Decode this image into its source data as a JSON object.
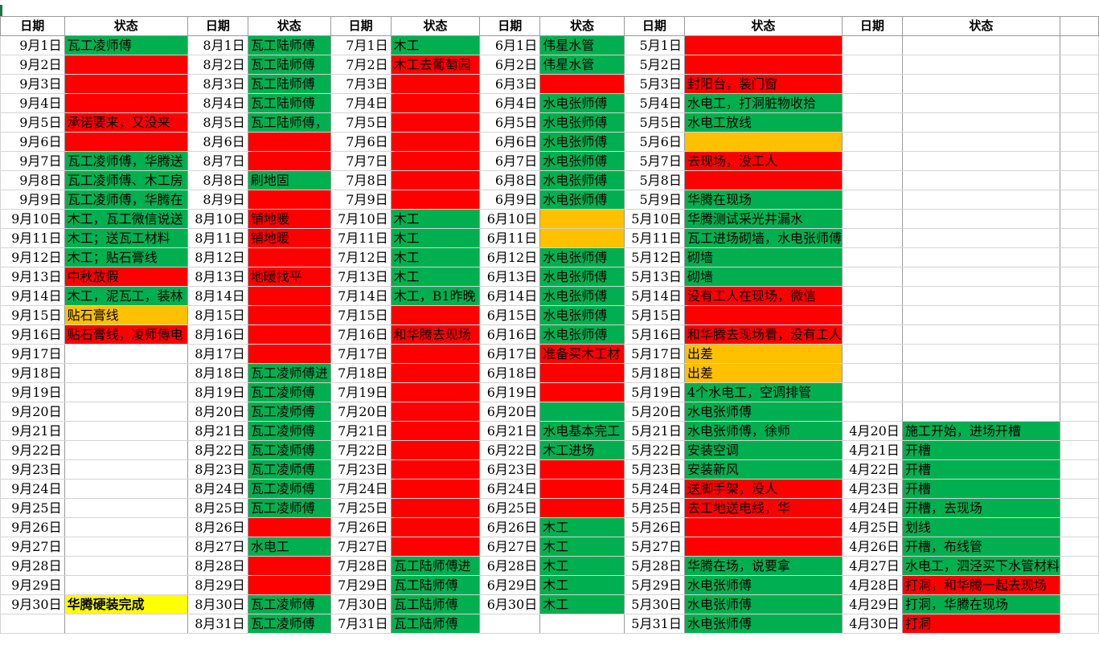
{
  "headers": [
    "日期",
    "状态",
    "日期",
    "状态",
    "日期",
    "状态",
    "日期",
    "状态",
    "日期",
    "状态",
    "日期",
    "状态"
  ],
  "colors": {
    "g": "#00b050",
    "r": "#ff0000",
    "o": "#ffc000",
    "y": "#ffff00"
  },
  "rows": [
    [
      [
        "9月1日",
        ""
      ],
      [
        "瓦工凌师傅",
        "g"
      ],
      [
        "8月1日",
        ""
      ],
      [
        "瓦工陆师傅",
        "g"
      ],
      [
        "7月1日",
        ""
      ],
      [
        "木工",
        "g"
      ],
      [
        "6月1日",
        ""
      ],
      [
        "伟星水管",
        "g"
      ],
      [
        "5月1日",
        ""
      ],
      [
        "",
        "r"
      ],
      [
        "",
        ""
      ],
      [
        "",
        ""
      ]
    ],
    [
      [
        "9月2日",
        ""
      ],
      [
        "",
        "r"
      ],
      [
        "8月2日",
        ""
      ],
      [
        "瓦工陆师傅",
        "g"
      ],
      [
        "7月2日",
        ""
      ],
      [
        "木工去葡萄园",
        "r"
      ],
      [
        "6月2日",
        ""
      ],
      [
        "伟星水管",
        "g"
      ],
      [
        "5月2日",
        ""
      ],
      [
        "",
        "r"
      ],
      [
        "",
        ""
      ],
      [
        "",
        ""
      ]
    ],
    [
      [
        "9月3日",
        ""
      ],
      [
        "",
        "r"
      ],
      [
        "8月3日",
        ""
      ],
      [
        "瓦工陆师傅",
        "g"
      ],
      [
        "7月3日",
        ""
      ],
      [
        "",
        "r"
      ],
      [
        "6月3日",
        ""
      ],
      [
        "",
        "r"
      ],
      [
        "5月3日",
        ""
      ],
      [
        "封阳台，装门窗",
        "r"
      ],
      [
        "",
        ""
      ],
      [
        "",
        ""
      ]
    ],
    [
      [
        "9月4日",
        ""
      ],
      [
        "",
        "r"
      ],
      [
        "8月4日",
        ""
      ],
      [
        "瓦工陆师傅",
        "g"
      ],
      [
        "7月4日",
        ""
      ],
      [
        "",
        "r"
      ],
      [
        "6月4日",
        ""
      ],
      [
        "水电张师傅",
        "g"
      ],
      [
        "5月4日",
        ""
      ],
      [
        "水电工，打洞脏物收拾",
        "g"
      ],
      [
        "",
        ""
      ],
      [
        "",
        ""
      ]
    ],
    [
      [
        "9月5日",
        ""
      ],
      [
        "承诺要来，又没来",
        "r"
      ],
      [
        "8月5日",
        ""
      ],
      [
        "瓦工陆师傅，",
        "g"
      ],
      [
        "7月5日",
        ""
      ],
      [
        "",
        "r"
      ],
      [
        "6月5日",
        ""
      ],
      [
        "水电张师傅",
        "g"
      ],
      [
        "5月5日",
        ""
      ],
      [
        "水电工放线",
        "g"
      ],
      [
        "",
        ""
      ],
      [
        "",
        ""
      ]
    ],
    [
      [
        "9月6日",
        ""
      ],
      [
        "",
        "r"
      ],
      [
        "8月6日",
        ""
      ],
      [
        "",
        "r"
      ],
      [
        "7月6日",
        ""
      ],
      [
        "",
        "r"
      ],
      [
        "6月6日",
        ""
      ],
      [
        "水电张师傅",
        "g"
      ],
      [
        "5月6日",
        ""
      ],
      [
        "",
        "o"
      ],
      [
        "",
        ""
      ],
      [
        "",
        ""
      ]
    ],
    [
      [
        "9月7日",
        ""
      ],
      [
        "瓦工凌师傅，华腾送",
        "g"
      ],
      [
        "8月7日",
        ""
      ],
      [
        "",
        "r"
      ],
      [
        "7月7日",
        ""
      ],
      [
        "",
        "r"
      ],
      [
        "6月7日",
        ""
      ],
      [
        "水电张师傅",
        "g"
      ],
      [
        "5月7日",
        ""
      ],
      [
        "去现场，没工人",
        "r"
      ],
      [
        "",
        ""
      ],
      [
        "",
        ""
      ]
    ],
    [
      [
        "9月8日",
        ""
      ],
      [
        "瓦工凌师傅、木工房",
        "g"
      ],
      [
        "8月8日",
        ""
      ],
      [
        "刷地固",
        "g"
      ],
      [
        "7月8日",
        ""
      ],
      [
        "",
        "r"
      ],
      [
        "6月8日",
        ""
      ],
      [
        "水电张师傅",
        "g"
      ],
      [
        "5月8日",
        ""
      ],
      [
        "",
        "r"
      ],
      [
        "",
        ""
      ],
      [
        "",
        ""
      ]
    ],
    [
      [
        "9月9日",
        ""
      ],
      [
        "瓦工凌师傅，华腾在",
        "g"
      ],
      [
        "8月9日",
        ""
      ],
      [
        "",
        "r"
      ],
      [
        "7月9日",
        ""
      ],
      [
        "",
        "r"
      ],
      [
        "6月9日",
        ""
      ],
      [
        "水电张师傅",
        "g"
      ],
      [
        "5月9日",
        ""
      ],
      [
        "华腾在现场",
        "g"
      ],
      [
        "",
        ""
      ],
      [
        "",
        ""
      ]
    ],
    [
      [
        "9月10日",
        ""
      ],
      [
        "木工，瓦工微信说送",
        "g"
      ],
      [
        "8月10日",
        ""
      ],
      [
        "铺地暖",
        "r"
      ],
      [
        "7月10日",
        ""
      ],
      [
        "木工",
        "g"
      ],
      [
        "6月10日",
        ""
      ],
      [
        "",
        "o"
      ],
      [
        "5月10日",
        ""
      ],
      [
        "华腾测试采光井漏水",
        "g"
      ],
      [
        "",
        ""
      ],
      [
        "",
        ""
      ]
    ],
    [
      [
        "9月11日",
        ""
      ],
      [
        "木工；送瓦工材料",
        "g"
      ],
      [
        "8月11日",
        ""
      ],
      [
        "铺地暖",
        "r"
      ],
      [
        "7月11日",
        ""
      ],
      [
        "木工",
        "g"
      ],
      [
        "6月11日",
        ""
      ],
      [
        "",
        "o"
      ],
      [
        "5月11日",
        ""
      ],
      [
        "瓦工进场砌墙，水电张师傅",
        "g"
      ],
      [
        "",
        ""
      ],
      [
        "",
        ""
      ]
    ],
    [
      [
        "9月12日",
        ""
      ],
      [
        "木工；贴石膏线",
        "g"
      ],
      [
        "8月12日",
        ""
      ],
      [
        "",
        "r"
      ],
      [
        "7月12日",
        ""
      ],
      [
        "木工",
        "g"
      ],
      [
        "6月12日",
        ""
      ],
      [
        "水电张师傅",
        "g"
      ],
      [
        "5月12日",
        ""
      ],
      [
        "砌墙",
        "g"
      ],
      [
        "",
        ""
      ],
      [
        "",
        ""
      ]
    ],
    [
      [
        "9月13日",
        ""
      ],
      [
        "中秋放假",
        "r"
      ],
      [
        "8月13日",
        ""
      ],
      [
        "地暖找平",
        "r"
      ],
      [
        "7月13日",
        ""
      ],
      [
        "木工",
        "g"
      ],
      [
        "6月13日",
        ""
      ],
      [
        "水电张师傅",
        "g"
      ],
      [
        "5月13日",
        ""
      ],
      [
        "砌墙",
        "g"
      ],
      [
        "",
        ""
      ],
      [
        "",
        ""
      ]
    ],
    [
      [
        "9月14日",
        ""
      ],
      [
        "木工，泥瓦工，装林",
        "g"
      ],
      [
        "8月14日",
        ""
      ],
      [
        "",
        "r"
      ],
      [
        "7月14日",
        ""
      ],
      [
        "木工，B1昨晚",
        "g"
      ],
      [
        "6月14日",
        ""
      ],
      [
        "水电张师傅",
        "g"
      ],
      [
        "5月14日",
        ""
      ],
      [
        "没有工人在现场，微信",
        "r"
      ],
      [
        "",
        ""
      ],
      [
        "",
        ""
      ]
    ],
    [
      [
        "9月15日",
        ""
      ],
      [
        "贴石膏线",
        "o"
      ],
      [
        "8月15日",
        ""
      ],
      [
        "",
        "r"
      ],
      [
        "7月15日",
        ""
      ],
      [
        "",
        "r"
      ],
      [
        "6月15日",
        ""
      ],
      [
        "水电张师傅",
        "g"
      ],
      [
        "5月15日",
        ""
      ],
      [
        "",
        "r"
      ],
      [
        "",
        ""
      ],
      [
        "",
        ""
      ]
    ],
    [
      [
        "9月16日",
        ""
      ],
      [
        "贴石膏线，凌师傅电",
        "r"
      ],
      [
        "8月16日",
        ""
      ],
      [
        "",
        "r"
      ],
      [
        "7月16日",
        ""
      ],
      [
        "和华腾去现场",
        "r"
      ],
      [
        "6月16日",
        ""
      ],
      [
        "水电张师傅",
        "g"
      ],
      [
        "5月16日",
        ""
      ],
      [
        "和华腾去现场看，没有工人",
        "r"
      ],
      [
        "",
        ""
      ],
      [
        "",
        ""
      ]
    ],
    [
      [
        "9月17日",
        ""
      ],
      [
        "",
        ""
      ],
      [
        "8月17日",
        ""
      ],
      [
        "",
        "r"
      ],
      [
        "7月17日",
        ""
      ],
      [
        "",
        "r"
      ],
      [
        "6月17日",
        ""
      ],
      [
        "准备买木工材",
        "r"
      ],
      [
        "5月17日",
        ""
      ],
      [
        "出差",
        "o"
      ],
      [
        "",
        ""
      ],
      [
        "",
        ""
      ]
    ],
    [
      [
        "9月18日",
        ""
      ],
      [
        "",
        ""
      ],
      [
        "8月18日",
        ""
      ],
      [
        "瓦工凌师傅进",
        "g"
      ],
      [
        "7月18日",
        ""
      ],
      [
        "",
        "r"
      ],
      [
        "6月18日",
        ""
      ],
      [
        "",
        "r"
      ],
      [
        "5月18日",
        ""
      ],
      [
        "出差",
        "o"
      ],
      [
        "",
        ""
      ],
      [
        "",
        ""
      ]
    ],
    [
      [
        "9月19日",
        ""
      ],
      [
        "",
        ""
      ],
      [
        "8月19日",
        ""
      ],
      [
        "瓦工凌师傅",
        "g"
      ],
      [
        "7月19日",
        ""
      ],
      [
        "",
        "r"
      ],
      [
        "6月19日",
        ""
      ],
      [
        "",
        "r"
      ],
      [
        "5月19日",
        ""
      ],
      [
        "4个水电工，空调排管",
        "g"
      ],
      [
        "",
        ""
      ],
      [
        "",
        ""
      ]
    ],
    [
      [
        "9月20日",
        ""
      ],
      [
        "",
        ""
      ],
      [
        "8月20日",
        ""
      ],
      [
        "瓦工凌师傅",
        "g"
      ],
      [
        "7月20日",
        ""
      ],
      [
        "",
        "r"
      ],
      [
        "6月20日",
        ""
      ],
      [
        "",
        "g"
      ],
      [
        "5月20日",
        ""
      ],
      [
        "水电张师傅",
        "g"
      ],
      [
        "",
        ""
      ],
      [
        "",
        ""
      ]
    ],
    [
      [
        "9月21日",
        ""
      ],
      [
        "",
        ""
      ],
      [
        "8月21日",
        ""
      ],
      [
        "瓦工凌师傅",
        "g"
      ],
      [
        "7月21日",
        ""
      ],
      [
        "",
        "r"
      ],
      [
        "6月21日",
        ""
      ],
      [
        "水电基本完工",
        "g"
      ],
      [
        "5月21日",
        ""
      ],
      [
        "水电张师傅，徐师",
        "g"
      ],
      [
        "4月20日",
        ""
      ],
      [
        "施工开始，进场开槽",
        "g"
      ]
    ],
    [
      [
        "9月22日",
        ""
      ],
      [
        "",
        ""
      ],
      [
        "8月22日",
        ""
      ],
      [
        "瓦工凌师傅",
        "g"
      ],
      [
        "7月22日",
        ""
      ],
      [
        "",
        "r"
      ],
      [
        "6月22日",
        ""
      ],
      [
        "木工进场",
        "g"
      ],
      [
        "5月22日",
        ""
      ],
      [
        "安装空调",
        "g"
      ],
      [
        "4月21日",
        ""
      ],
      [
        "开槽",
        "g"
      ]
    ],
    [
      [
        "9月23日",
        ""
      ],
      [
        "",
        ""
      ],
      [
        "8月23日",
        ""
      ],
      [
        "瓦工凌师傅",
        "g"
      ],
      [
        "7月23日",
        ""
      ],
      [
        "",
        "r"
      ],
      [
        "6月23日",
        ""
      ],
      [
        "",
        "r"
      ],
      [
        "5月23日",
        ""
      ],
      [
        "安装新风",
        "g"
      ],
      [
        "4月22日",
        ""
      ],
      [
        "开槽",
        "g"
      ]
    ],
    [
      [
        "9月24日",
        ""
      ],
      [
        "",
        ""
      ],
      [
        "8月24日",
        ""
      ],
      [
        "瓦工凌师傅",
        "g"
      ],
      [
        "7月24日",
        ""
      ],
      [
        "",
        "r"
      ],
      [
        "6月24日",
        ""
      ],
      [
        "",
        "r"
      ],
      [
        "5月24日",
        ""
      ],
      [
        "送脚手架，没人",
        "r"
      ],
      [
        "4月23日",
        ""
      ],
      [
        "开槽",
        "g"
      ]
    ],
    [
      [
        "9月25日",
        ""
      ],
      [
        "",
        ""
      ],
      [
        "8月25日",
        ""
      ],
      [
        "瓦工凌师傅",
        "g"
      ],
      [
        "7月25日",
        ""
      ],
      [
        "",
        "r"
      ],
      [
        "6月25日",
        ""
      ],
      [
        "",
        "r"
      ],
      [
        "5月25日",
        ""
      ],
      [
        "去工地送电线，华",
        "r"
      ],
      [
        "4月24日",
        ""
      ],
      [
        "开槽，去现场",
        "g"
      ]
    ],
    [
      [
        "9月26日",
        ""
      ],
      [
        "",
        ""
      ],
      [
        "8月26日",
        ""
      ],
      [
        "",
        "r"
      ],
      [
        "7月26日",
        ""
      ],
      [
        "",
        "r"
      ],
      [
        "6月26日",
        ""
      ],
      [
        "木工",
        "g"
      ],
      [
        "5月26日",
        ""
      ],
      [
        "",
        "r"
      ],
      [
        "4月25日",
        ""
      ],
      [
        "划线",
        "g"
      ]
    ],
    [
      [
        "9月27日",
        ""
      ],
      [
        "",
        ""
      ],
      [
        "8月27日",
        ""
      ],
      [
        "水电工",
        "g"
      ],
      [
        "7月27日",
        ""
      ],
      [
        "",
        "r"
      ],
      [
        "6月27日",
        ""
      ],
      [
        "木工",
        "g"
      ],
      [
        "5月27日",
        ""
      ],
      [
        "",
        "r"
      ],
      [
        "4月26日",
        ""
      ],
      [
        "开槽，布线管",
        "g"
      ]
    ],
    [
      [
        "9月28日",
        ""
      ],
      [
        "",
        ""
      ],
      [
        "8月28日",
        ""
      ],
      [
        "",
        "r"
      ],
      [
        "7月28日",
        ""
      ],
      [
        "瓦工陆师傅进",
        "g"
      ],
      [
        "6月28日",
        ""
      ],
      [
        "木工",
        "g"
      ],
      [
        "5月28日",
        ""
      ],
      [
        "华腾在场，说要拿",
        "g"
      ],
      [
        "4月27日",
        ""
      ],
      [
        "水电工，泗泾买下水管材料",
        "g"
      ]
    ],
    [
      [
        "9月29日",
        ""
      ],
      [
        "",
        ""
      ],
      [
        "8月29日",
        ""
      ],
      [
        "",
        "r"
      ],
      [
        "7月29日",
        ""
      ],
      [
        "瓦工陆师傅",
        "g"
      ],
      [
        "6月29日",
        ""
      ],
      [
        "木工",
        "g"
      ],
      [
        "5月29日",
        ""
      ],
      [
        "水电张师傅",
        "g"
      ],
      [
        "4月28日",
        ""
      ],
      [
        "打洞，和华腾一起去现场",
        "r"
      ]
    ],
    [
      [
        "9月30日",
        ""
      ],
      [
        "华腾硬装完成",
        "y"
      ],
      [
        "8月30日",
        ""
      ],
      [
        "瓦工凌师傅",
        "g"
      ],
      [
        "7月30日",
        ""
      ],
      [
        "瓦工陆师傅",
        "g"
      ],
      [
        "6月30日",
        ""
      ],
      [
        "木工",
        "g"
      ],
      [
        "5月30日",
        ""
      ],
      [
        "水电张师傅",
        "g"
      ],
      [
        "4月29日",
        ""
      ],
      [
        "打洞，华腾在现场",
        "g"
      ]
    ],
    [
      [
        "",
        ""
      ],
      [
        "",
        ""
      ],
      [
        "8月31日",
        ""
      ],
      [
        "瓦工凌师傅",
        "g"
      ],
      [
        "7月31日",
        ""
      ],
      [
        "瓦工陆师傅",
        "g"
      ],
      [
        "",
        ""
      ],
      [
        "",
        ""
      ],
      [
        "5月31日",
        ""
      ],
      [
        "水电张师傅",
        "g"
      ],
      [
        "4月30日",
        ""
      ],
      [
        "打洞",
        "r"
      ]
    ]
  ]
}
